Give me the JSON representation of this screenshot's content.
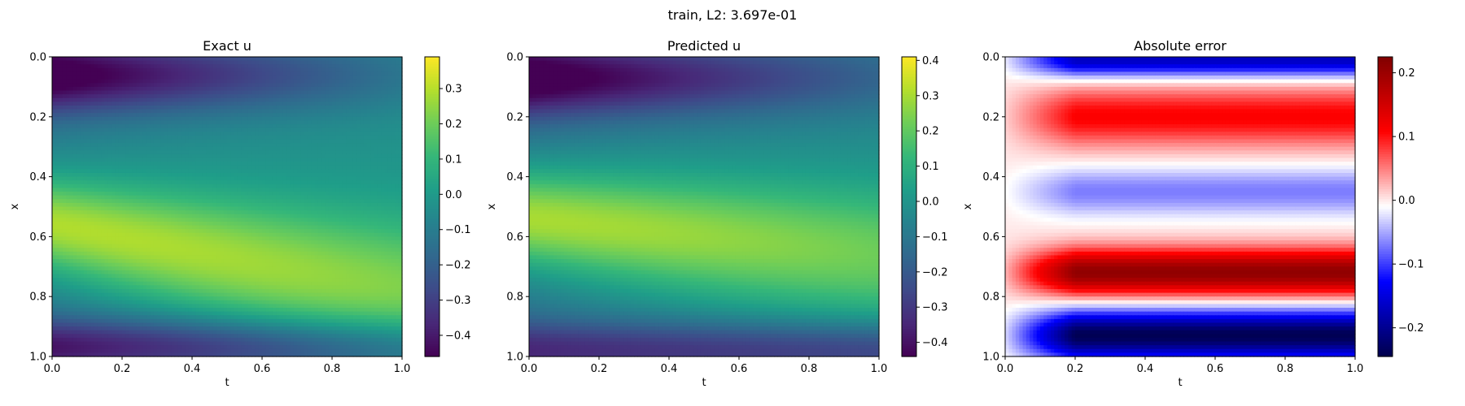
{
  "suptitle": "train, L2: 3.697e-01",
  "chart_data": [
    {
      "type": "heatmap",
      "title": "Exact u",
      "xlabel": "t",
      "ylabel": "x",
      "xlim": [
        0.0,
        1.0
      ],
      "ylim": [
        1.0,
        0.0
      ],
      "xticks": [
        "0.0",
        "0.2",
        "0.4",
        "0.6",
        "0.8",
        "1.0"
      ],
      "yticks": [
        "0.0",
        "0.2",
        "0.4",
        "0.6",
        "0.8",
        "1.0"
      ],
      "colormap": "viridis",
      "colorbar": {
        "range": [
          -0.46,
          0.39
        ],
        "ticks": [
          {
            "v": 0.3,
            "label": "0.3"
          },
          {
            "v": 0.2,
            "label": "0.2"
          },
          {
            "v": 0.1,
            "label": "0.1"
          },
          {
            "v": 0.0,
            "label": "0.0"
          },
          {
            "v": -0.1,
            "label": "−0.1"
          },
          {
            "v": -0.2,
            "label": "−0.2"
          },
          {
            "v": -0.3,
            "label": "−0.3"
          },
          {
            "v": -0.4,
            "label": "−0.4"
          }
        ]
      }
    },
    {
      "type": "heatmap",
      "title": "Predicted u",
      "xlabel": "t",
      "ylabel": "x",
      "xlim": [
        0.0,
        1.0
      ],
      "ylim": [
        1.0,
        0.0
      ],
      "xticks": [
        "0.0",
        "0.2",
        "0.4",
        "0.6",
        "0.8",
        "1.0"
      ],
      "yticks": [
        "0.0",
        "0.2",
        "0.4",
        "0.6",
        "0.8",
        "1.0"
      ],
      "colormap": "viridis",
      "colorbar": {
        "range": [
          -0.44,
          0.41
        ],
        "ticks": [
          {
            "v": 0.4,
            "label": "0.4"
          },
          {
            "v": 0.3,
            "label": "0.3"
          },
          {
            "v": 0.2,
            "label": "0.2"
          },
          {
            "v": 0.1,
            "label": "0.1"
          },
          {
            "v": 0.0,
            "label": "0.0"
          },
          {
            "v": -0.1,
            "label": "−0.1"
          },
          {
            "v": -0.2,
            "label": "−0.2"
          },
          {
            "v": -0.3,
            "label": "−0.3"
          },
          {
            "v": -0.4,
            "label": "−0.4"
          }
        ]
      }
    },
    {
      "type": "heatmap",
      "title": "Absolute error",
      "xlabel": "t",
      "ylabel": "x",
      "xlim": [
        0.0,
        1.0
      ],
      "ylim": [
        1.0,
        0.0
      ],
      "xticks": [
        "0.0",
        "0.2",
        "0.4",
        "0.6",
        "0.8",
        "1.0"
      ],
      "yticks": [
        "0.0",
        "0.2",
        "0.4",
        "0.6",
        "0.8",
        "1.0"
      ],
      "colormap": "seismic",
      "colorbar": {
        "range": [
          -0.245,
          0.225
        ],
        "ticks": [
          {
            "v": 0.2,
            "label": "0.2"
          },
          {
            "v": 0.1,
            "label": "0.1"
          },
          {
            "v": 0.0,
            "label": "0.0"
          },
          {
            "v": -0.1,
            "label": "−0.1"
          },
          {
            "v": -0.2,
            "label": "−0.2"
          }
        ]
      }
    }
  ]
}
